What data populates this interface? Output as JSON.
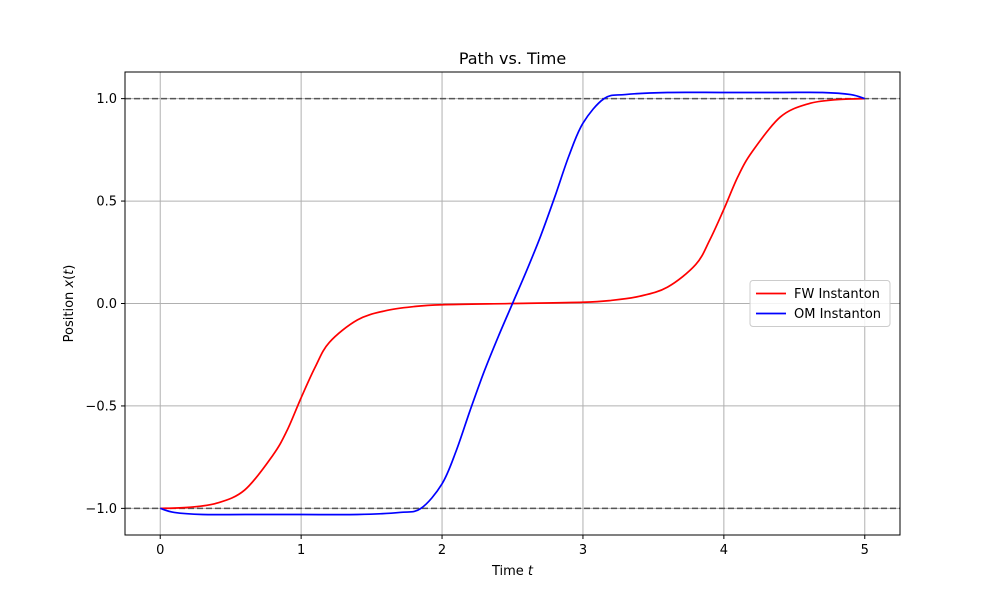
{
  "chart_data": {
    "type": "line",
    "title": "Path vs. Time",
    "xlabel": "Time t",
    "ylabel": "Position x(t)",
    "xlim": [
      -0.25,
      5.25
    ],
    "ylim": [
      -1.13,
      1.13
    ],
    "xticks": [
      0,
      1,
      2,
      3,
      4,
      5
    ],
    "xtick_labels": [
      "0",
      "1",
      "2",
      "3",
      "4",
      "5"
    ],
    "yticks": [
      -1.0,
      -0.5,
      0.0,
      0.5,
      1.0
    ],
    "ytick_labels": [
      "−1.0",
      "−0.5",
      "0.0",
      "0.5",
      "1.0"
    ],
    "grid": true,
    "legend_position": "center-right",
    "reference_lines": [
      {
        "y": 1.0,
        "style": "dashed",
        "color": "#555555"
      },
      {
        "y": -1.0,
        "style": "dashed",
        "color": "#555555"
      }
    ],
    "series": [
      {
        "name": "FW Instanton",
        "color": "#ff0000",
        "x": [
          0,
          0.2,
          0.4,
          0.6,
          0.8,
          0.9,
          1.0,
          1.1,
          1.2,
          1.4,
          1.6,
          1.8,
          2.0,
          2.5,
          3.0,
          3.2,
          3.4,
          3.6,
          3.8,
          3.9,
          4.0,
          4.1,
          4.2,
          4.4,
          4.6,
          4.8,
          5.0
        ],
        "y": [
          -1.0,
          -0.995,
          -0.975,
          -0.91,
          -0.74,
          -0.62,
          -0.46,
          -0.31,
          -0.19,
          -0.08,
          -0.035,
          -0.015,
          -0.006,
          0.0,
          0.006,
          0.015,
          0.035,
          0.08,
          0.19,
          0.31,
          0.46,
          0.62,
          0.74,
          0.91,
          0.975,
          0.995,
          1.0
        ]
      },
      {
        "name": "OM Instanton",
        "color": "#0000ff",
        "x": [
          0,
          0.1,
          0.3,
          0.6,
          1.0,
          1.4,
          1.7,
          1.85,
          2.0,
          2.1,
          2.2,
          2.3,
          2.4,
          2.5,
          2.6,
          2.7,
          2.8,
          2.9,
          3.0,
          3.15,
          3.3,
          3.6,
          4.0,
          4.4,
          4.7,
          4.9,
          5.0
        ],
        "y": [
          -1.0,
          -1.02,
          -1.03,
          -1.03,
          -1.03,
          -1.03,
          -1.02,
          -1.0,
          -0.88,
          -0.72,
          -0.52,
          -0.33,
          -0.16,
          0.0,
          0.16,
          0.33,
          0.52,
          0.72,
          0.88,
          1.0,
          1.02,
          1.03,
          1.03,
          1.03,
          1.03,
          1.02,
          1.0
        ]
      }
    ]
  }
}
